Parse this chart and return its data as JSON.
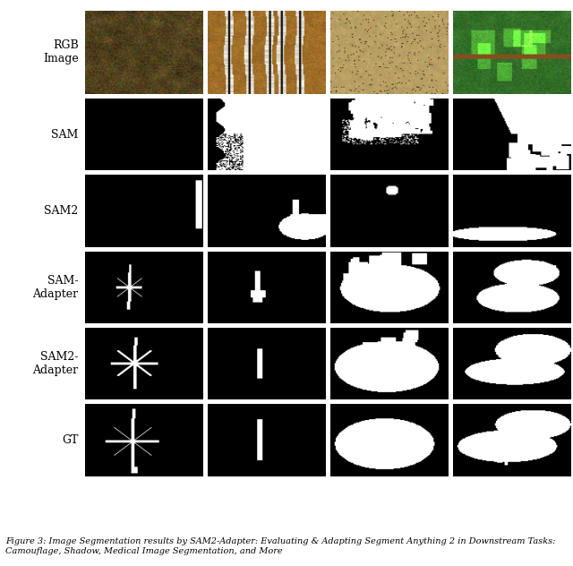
{
  "row_labels": [
    "RGB\nImage",
    "SAM",
    "SAM2",
    "SAM-\nAdapter",
    "SAM2-\nAdapter",
    "GT"
  ],
  "n_rows": 6,
  "n_cols": 4,
  "fig_width": 6.4,
  "fig_height": 6.32,
  "label_fontsize": 9,
  "caption_fontsize": 7,
  "bg_color": "#ffffff"
}
